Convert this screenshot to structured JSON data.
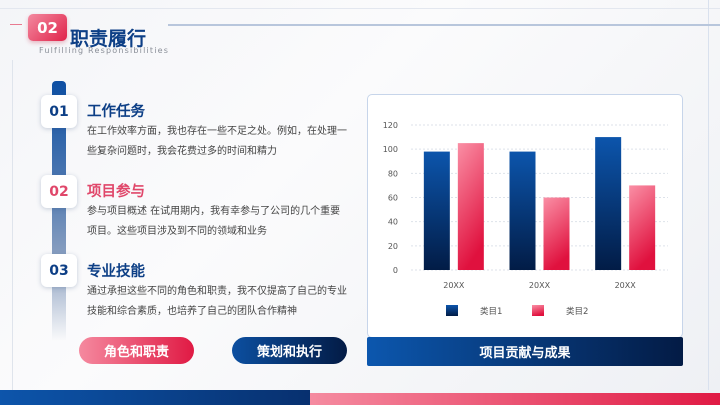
{
  "header": {
    "number": "02",
    "title": "职责履行",
    "subtitle": "Fulfilling  Responsibilities"
  },
  "items": [
    {
      "num": "01",
      "title": "工作任务",
      "text": "在工作效率方面，我也存在一些不足之处。例如，在处理一些复杂问题时，我会花费过多的时间和精力",
      "color": "#0d3f86"
    },
    {
      "num": "02",
      "title": "项目参与",
      "text": "参与项目概述 在试用期内，我有幸参与了公司的几个重要项目。这些项目涉及到不同的领域和业务",
      "color": "#e0476a"
    },
    {
      "num": "03",
      "title": "专业技能",
      "text": "通过承担这些不同的角色和职责，我不仅提高了自己的专业技能和综合素质，也培养了自己的团队合作精神",
      "color": "#0d3f86"
    }
  ],
  "buttons": {
    "roles": "角色和职责",
    "planning": "策划和执行",
    "contribution": "项目贡献与成果"
  },
  "colors": {
    "blue": "#0c4fa0",
    "pink": "#e8365c"
  },
  "chart_data": {
    "type": "bar",
    "categories": [
      "20XX",
      "20XX",
      "20XX"
    ],
    "series": [
      {
        "name": "类目1",
        "values": [
          98,
          98,
          110
        ]
      },
      {
        "name": "类目2",
        "values": [
          105,
          60,
          70
        ]
      }
    ],
    "ylim": [
      0,
      120
    ],
    "yticks": [
      0,
      20,
      40,
      60,
      80,
      100,
      120
    ],
    "grid": true,
    "legend": "bottom"
  }
}
